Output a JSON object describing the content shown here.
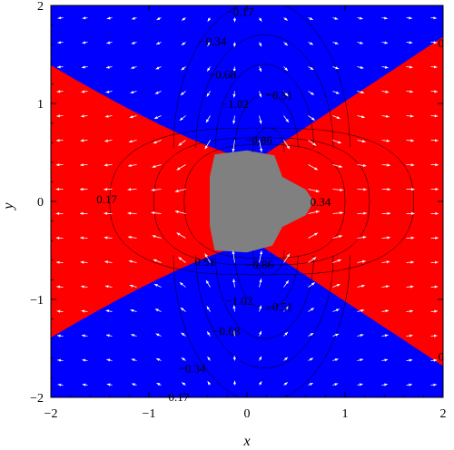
{
  "chart_data": {
    "type": "contour",
    "xlabel": "x",
    "ylabel": "y",
    "xlim": [
      -2,
      2
    ],
    "ylim": [
      -2,
      2
    ],
    "x_ticks": [
      -2,
      -1,
      0,
      1,
      2
    ],
    "y_ticks": [
      -2,
      -1,
      0,
      1,
      2
    ],
    "x_tick_labels": [
      "−2",
      "−1",
      "0",
      "1",
      "2"
    ],
    "y_tick_labels": [
      "−2",
      "−1",
      "0",
      "1",
      "2"
    ],
    "colors": {
      "positive_region": "#ff0000",
      "negative_region": "#0000ff",
      "core_region": "#808080",
      "contour_line": "#000000",
      "arrow": "#ffffff"
    },
    "contour_labels": [
      {
        "x": -0.07,
        "y": 1.93,
        "text": "−0.17"
      },
      {
        "x": -0.35,
        "y": 1.63,
        "text": "−0.34"
      },
      {
        "x": -0.25,
        "y": 1.29,
        "text": "−0.68"
      },
      {
        "x": -0.12,
        "y": 0.99,
        "text": "−1.02"
      },
      {
        "x": 0.33,
        "y": 1.08,
        "text": "−0.51"
      },
      {
        "x": 0.12,
        "y": 0.62,
        "text": "−0.86"
      },
      {
        "x": 1.98,
        "y": 1.61,
        "text": "0"
      },
      {
        "x": -1.43,
        "y": 0.02,
        "text": "0.17"
      },
      {
        "x": 0.75,
        "y": -0.01,
        "text": "0.34"
      },
      {
        "x": -0.43,
        "y": -0.62,
        "text": "0.51"
      },
      {
        "x": 0.13,
        "y": -0.65,
        "text": "−0.86"
      },
      {
        "x": -0.08,
        "y": -1.02,
        "text": "−1.02"
      },
      {
        "x": 0.33,
        "y": -1.08,
        "text": "−0.51"
      },
      {
        "x": -0.21,
        "y": -1.33,
        "text": "−0.68"
      },
      {
        "x": -0.56,
        "y": -1.71,
        "text": "−0.34"
      },
      {
        "x": -0.73,
        "y": -2.0,
        "text": "−0.17"
      },
      {
        "x": 1.98,
        "y": -1.59,
        "text": "0"
      }
    ]
  }
}
